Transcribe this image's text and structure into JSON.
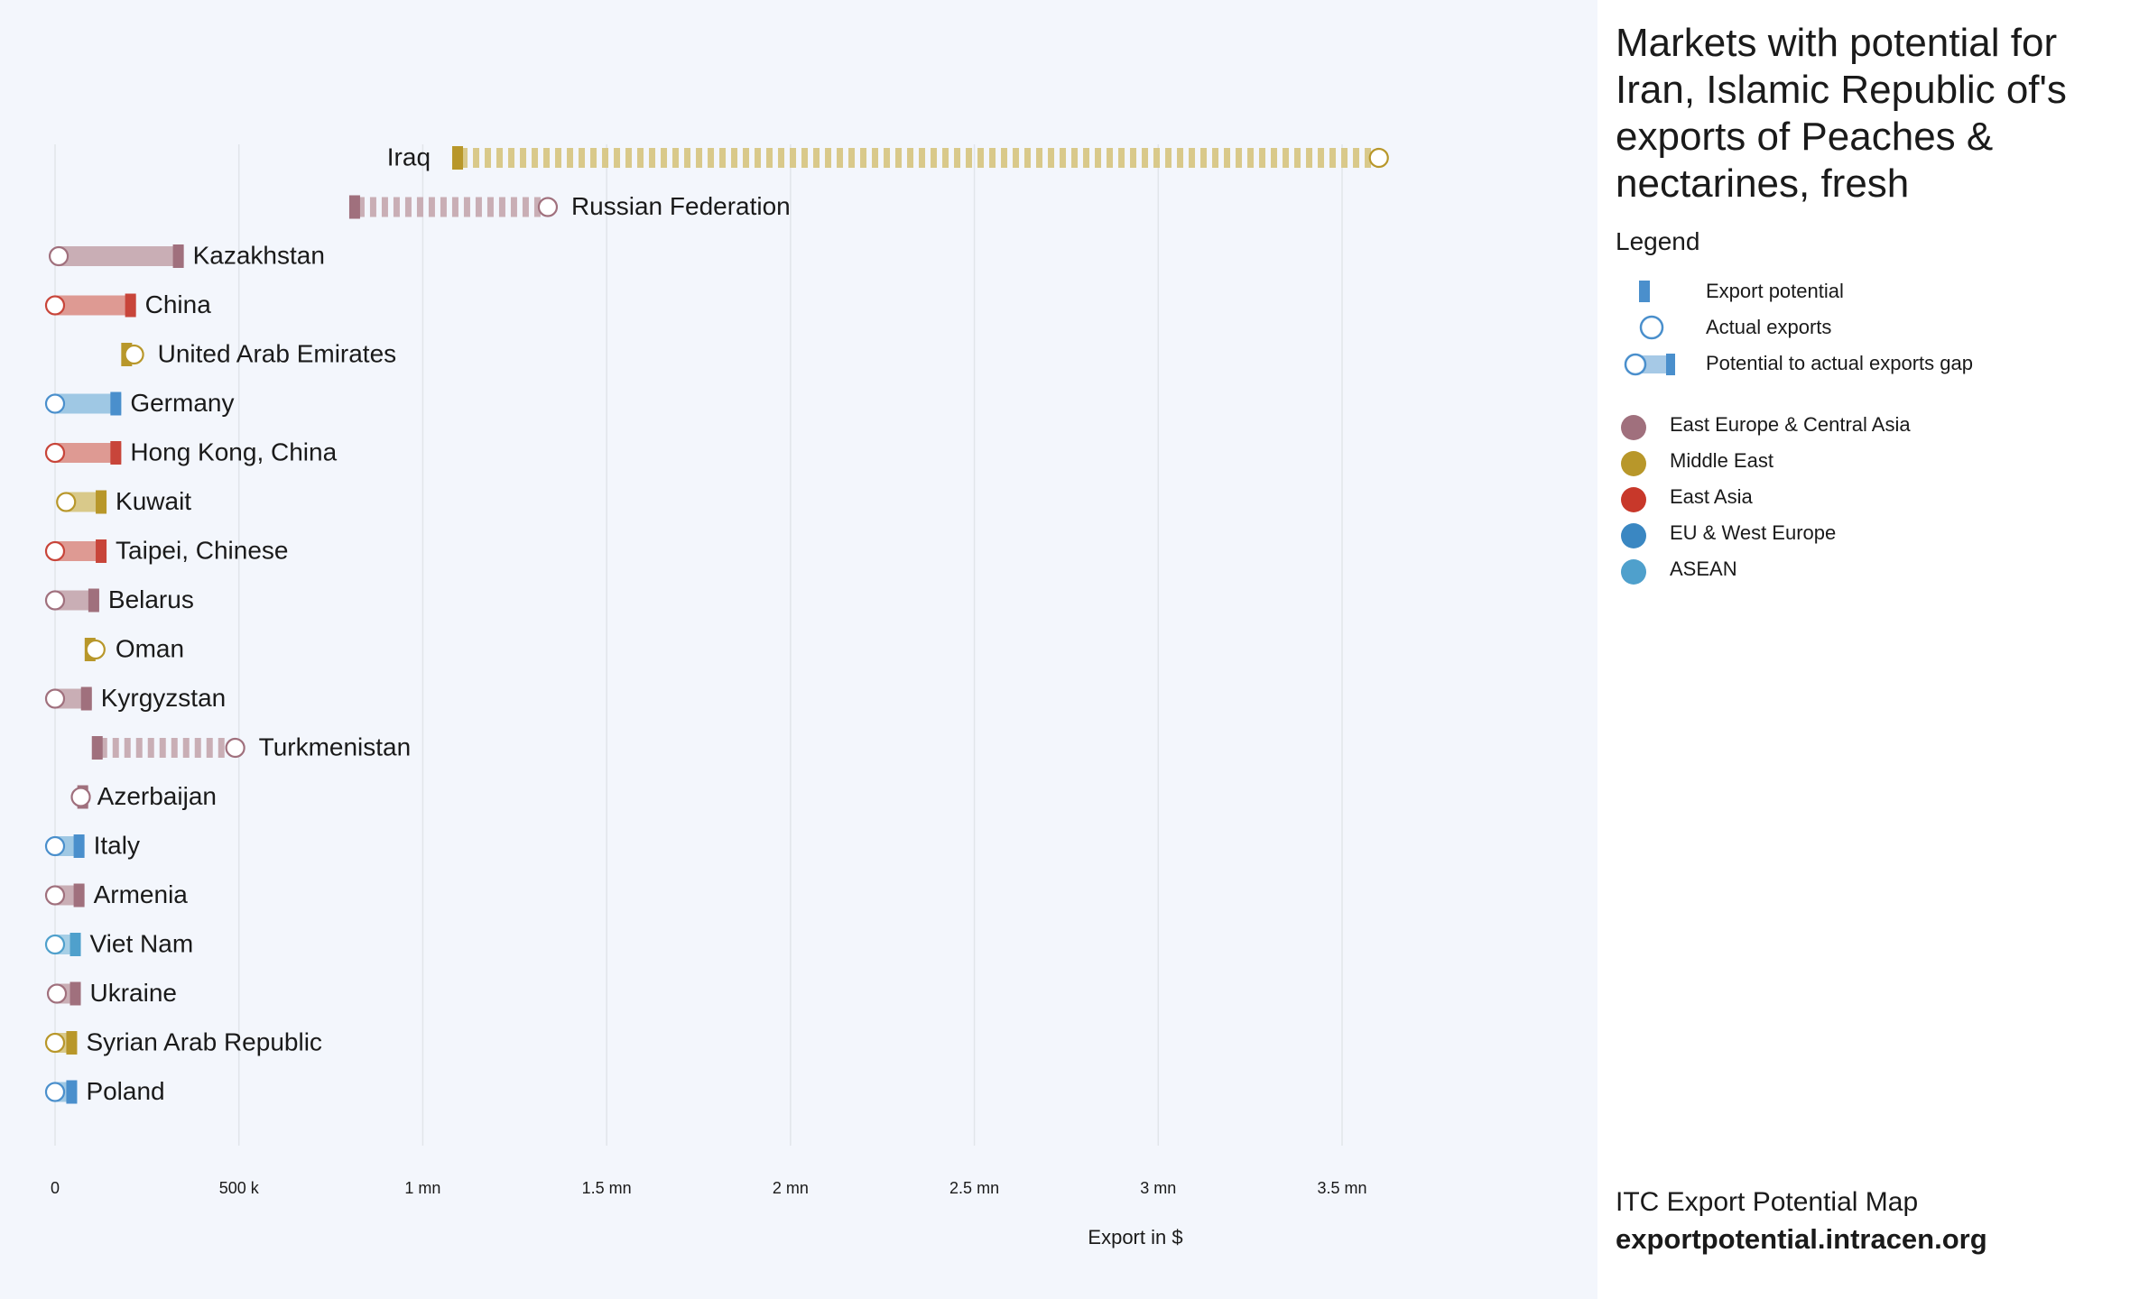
{
  "panel": {
    "title": "Markets with potential for Iran, Islamic Republic of's exports of Peaches & nectarines, fresh",
    "legend_heading": "Legend",
    "legend_items": [
      {
        "label": "Export potential",
        "icon": "potential-bar-icon"
      },
      {
        "label": "Actual exports",
        "icon": "actual-exports-circle-icon"
      },
      {
        "label": "Potential to actual exports gap",
        "icon": "gap-bar-icon"
      }
    ],
    "regions": [
      {
        "name": "East Europe & Central Asia",
        "color": "#a0707d"
      },
      {
        "name": "Middle East",
        "color": "#b8972a"
      },
      {
        "name": "East Asia",
        "color": "#c8382a"
      },
      {
        "name": "EU & West Europe",
        "color": "#3a87c2"
      },
      {
        "name": "ASEAN",
        "color": "#4fa0cc"
      }
    ],
    "footer_line1": "ITC Export Potential Map",
    "footer_line2": "exportpotential.intracen.org"
  },
  "chart_data": {
    "type": "dumbbell",
    "xlabel": "Export in $",
    "xlim": [
      0,
      3600000
    ],
    "ticks": [
      {
        "value": 0,
        "label": "0"
      },
      {
        "value": 500000,
        "label": "500 k"
      },
      {
        "value": 1000000,
        "label": "1 mn"
      },
      {
        "value": 1500000,
        "label": "1.5 mn"
      },
      {
        "value": 2000000,
        "label": "2 mn"
      },
      {
        "value": 2500000,
        "label": "2.5 mn"
      },
      {
        "value": 3000000,
        "label": "3 mn"
      },
      {
        "value": 3500000,
        "label": "3.5 mn"
      }
    ],
    "grid": true,
    "series_fields": [
      "export_potential",
      "actual_exports"
    ],
    "markets": [
      {
        "name": "Iraq",
        "region": "Middle East",
        "export_potential": 1080000,
        "actual_exports": 3600000
      },
      {
        "name": "Russian Federation",
        "region": "East Europe & Central Asia",
        "export_potential": 800000,
        "actual_exports": 1340000
      },
      {
        "name": "Kazakhstan",
        "region": "East Europe & Central Asia",
        "export_potential": 350000,
        "actual_exports": 10000
      },
      {
        "name": "China",
        "region": "East Asia",
        "export_potential": 220000,
        "actual_exports": 0
      },
      {
        "name": "United Arab Emirates",
        "region": "Middle East",
        "export_potential": 180000,
        "actual_exports": 215000
      },
      {
        "name": "Germany",
        "region": "EU & West Europe",
        "export_potential": 180000,
        "actual_exports": 0
      },
      {
        "name": "Hong Kong, China",
        "region": "East Asia",
        "export_potential": 180000,
        "actual_exports": 0
      },
      {
        "name": "Kuwait",
        "region": "Middle East",
        "export_potential": 140000,
        "actual_exports": 30000
      },
      {
        "name": "Taipei, Chinese",
        "region": "East Asia",
        "export_potential": 140000,
        "actual_exports": 0
      },
      {
        "name": "Belarus",
        "region": "East Europe & Central Asia",
        "export_potential": 120000,
        "actual_exports": 0
      },
      {
        "name": "Oman",
        "region": "Middle East",
        "export_potential": 110000,
        "actual_exports": 110000
      },
      {
        "name": "Kyrgyzstan",
        "region": "East Europe & Central Asia",
        "export_potential": 100000,
        "actual_exports": 0
      },
      {
        "name": "Turkmenistan",
        "region": "East Europe & Central Asia",
        "export_potential": 100000,
        "actual_exports": 490000
      },
      {
        "name": "Azerbaijan",
        "region": "East Europe & Central Asia",
        "export_potential": 90000,
        "actual_exports": 70000
      },
      {
        "name": "Italy",
        "region": "EU & West Europe",
        "export_potential": 80000,
        "actual_exports": 0
      },
      {
        "name": "Armenia",
        "region": "East Europe & Central Asia",
        "export_potential": 80000,
        "actual_exports": 0
      },
      {
        "name": "Viet Nam",
        "region": "ASEAN",
        "export_potential": 70000,
        "actual_exports": 0
      },
      {
        "name": "Ukraine",
        "region": "East Europe & Central Asia",
        "export_potential": 70000,
        "actual_exports": 5000
      },
      {
        "name": "Syrian Arab Republic",
        "region": "Middle East",
        "export_potential": 60000,
        "actual_exports": 0
      },
      {
        "name": "Poland",
        "region": "EU & West Europe",
        "export_potential": 60000,
        "actual_exports": 0
      }
    ]
  }
}
